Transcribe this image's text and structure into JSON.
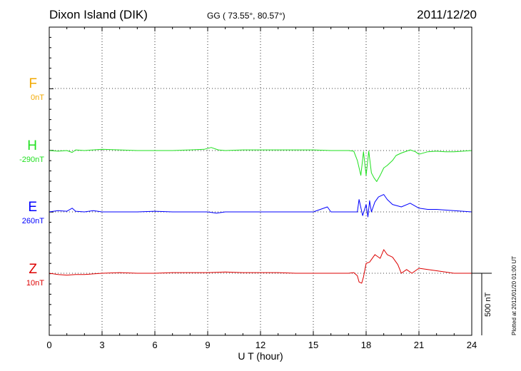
{
  "header": {
    "station": "Dixon Island (DIK)",
    "coords": "GG ( 73.55°,  80.57°)",
    "date": "2011/12/20"
  },
  "footer": {
    "plotted": "Plotted at 2012/01/20 01:00 UT"
  },
  "chart_data": {
    "type": "line",
    "title": "Dixon Island (DIK)",
    "xlabel": "U T (hour)",
    "xlim": [
      0,
      24
    ],
    "x_ticks": [
      "0",
      "3",
      "6",
      "9",
      "12",
      "15",
      "18",
      "21",
      "24"
    ],
    "grid": true,
    "scale_bar": "500 nT",
    "units": "nT",
    "series": [
      {
        "name": "F",
        "baseline_label": "0nT",
        "color": "#f2a900",
        "x": [],
        "y": []
      },
      {
        "name": "H",
        "baseline_label": "-290nT",
        "color": "#1fe01f",
        "x": [
          0,
          0.5,
          1,
          1.3,
          1.5,
          2,
          2.5,
          3,
          4,
          5,
          6,
          7,
          8,
          8.8,
          9.2,
          9.6,
          10,
          11,
          12,
          13,
          14,
          15,
          16,
          17,
          17.3,
          17.5,
          17.7,
          17.85,
          18,
          18.15,
          18.3,
          18.45,
          18.6,
          18.8,
          19,
          19.2,
          19.5,
          19.7,
          20,
          20.3,
          20.5,
          20.8,
          21,
          21.5,
          22,
          22.5,
          23,
          23.5,
          24
        ],
        "y": [
          0,
          -5,
          0,
          -15,
          5,
          0,
          5,
          10,
          5,
          0,
          0,
          0,
          5,
          10,
          25,
          5,
          0,
          5,
          5,
          5,
          5,
          5,
          0,
          0,
          -5,
          -80,
          -200,
          -10,
          -200,
          -5,
          -180,
          -220,
          -250,
          -200,
          -140,
          -120,
          -80,
          -40,
          -20,
          -5,
          5,
          -10,
          -30,
          -10,
          -5,
          -10,
          -10,
          -5,
          0
        ]
      },
      {
        "name": "E",
        "baseline_label": "260nT",
        "color": "#0000ff",
        "x": [
          0,
          0.5,
          1,
          1.3,
          1.5,
          2,
          2.5,
          3,
          4,
          5,
          6,
          7,
          8,
          9,
          9.5,
          10,
          11,
          12,
          13,
          14,
          15,
          15.8,
          16,
          16.5,
          17,
          17.5,
          17.6,
          17.8,
          18,
          18.1,
          18.2,
          18.3,
          18.5,
          18.7,
          19,
          19.2,
          19.5,
          20,
          20.5,
          21,
          21.5,
          22,
          23,
          24
        ],
        "y": [
          0,
          10,
          5,
          30,
          5,
          0,
          10,
          0,
          0,
          0,
          5,
          0,
          0,
          0,
          -10,
          0,
          0,
          0,
          0,
          0,
          0,
          40,
          0,
          0,
          0,
          0,
          100,
          -30,
          60,
          -40,
          90,
          0,
          80,
          120,
          140,
          100,
          60,
          40,
          70,
          30,
          20,
          20,
          10,
          0
        ]
      },
      {
        "name": "Z",
        "baseline_label": "10nT",
        "color": "#dd0000",
        "x": [
          0,
          0.5,
          1,
          1.5,
          2,
          2.5,
          3,
          4,
          5,
          6,
          7,
          8,
          9,
          10,
          11,
          12,
          13,
          14,
          15,
          16,
          17,
          17.3,
          17.5,
          17.6,
          17.75,
          17.85,
          18,
          18.2,
          18.5,
          18.8,
          19,
          19.2,
          19.5,
          19.8,
          20,
          20.3,
          20.6,
          21,
          21.5,
          22,
          22.5,
          23,
          24
        ],
        "y": [
          0,
          -10,
          -15,
          -10,
          -10,
          -5,
          0,
          5,
          0,
          0,
          5,
          5,
          5,
          10,
          5,
          5,
          5,
          0,
          0,
          0,
          0,
          5,
          -20,
          -70,
          -80,
          -30,
          80,
          90,
          150,
          120,
          190,
          150,
          130,
          70,
          0,
          30,
          0,
          40,
          30,
          20,
          10,
          0,
          0
        ]
      }
    ]
  }
}
